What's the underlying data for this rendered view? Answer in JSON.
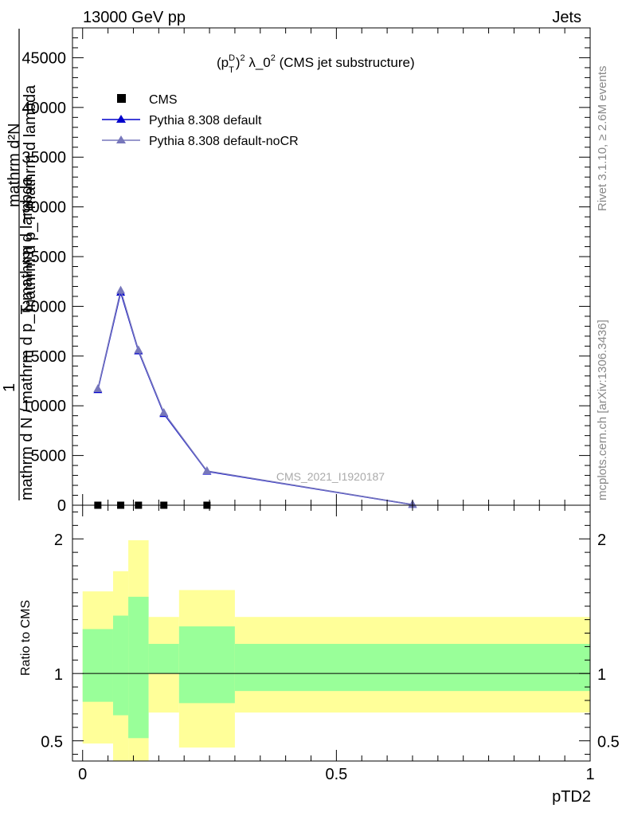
{
  "header": {
    "left": "13000 GeV pp",
    "right": "Jets"
  },
  "side_labels": {
    "rivet": "Rivet 3.1.10, ≥ 2.6M events",
    "mcplots": "mcplots.cern.ch [arXiv:1306.3436]"
  },
  "chart_data": [
    {
      "type": "line",
      "title": "(p_T^D)^2 λ_0^2 (CMS jet substructure)",
      "title_parts": {
        "a": "(p",
        "sup1": "D",
        "sub1": "T",
        "b": ")",
        "sup2": "2",
        "c": " λ_0",
        "sup3": "2",
        "d": " (CMS jet substructure)"
      },
      "ylabel_lines": [
        "1",
        "mathrm d²N",
        "mathrm d N / mathrm d p_T mathrm d lambda",
        "mathrm d p_T mathrm d lambda"
      ],
      "watermark": "CMS_2021_I1920187",
      "xlim": [
        -0.02,
        1.0
      ],
      "ylim": [
        0,
        48000
      ],
      "yticks": [
        0,
        5000,
        10000,
        15000,
        20000,
        25000,
        30000,
        35000,
        40000,
        45000
      ],
      "ytick_labels": [
        "0",
        "5000",
        "10000",
        "15000",
        "20000",
        "25000",
        "30000",
        "35000",
        "40000",
        "45000"
      ],
      "legend": {
        "placement": "top-left",
        "entries": [
          "CMS",
          "Pythia 8.308 default",
          "Pythia 8.308 default-noCR"
        ]
      },
      "series": [
        {
          "name": "CMS",
          "marker": "square",
          "color": "#000000",
          "x": [
            0.03,
            0.075,
            0.11,
            0.16,
            0.245
          ],
          "y": [
            0,
            0,
            0,
            0,
            0
          ]
        },
        {
          "name": "Pythia 8.308 default",
          "marker": "triangle",
          "color": "#0000cc",
          "x": [
            0.03,
            0.075,
            0.11,
            0.16,
            0.245,
            0.65
          ],
          "y": [
            11600,
            21400,
            15500,
            9200,
            3400,
            60
          ]
        },
        {
          "name": "Pythia 8.308 default-noCR",
          "marker": "triangle",
          "color": "#7777bb",
          "x": [
            0.03,
            0.075,
            0.11,
            0.16,
            0.245,
            0.65
          ],
          "y": [
            11700,
            21600,
            15600,
            9300,
            3450,
            70
          ]
        }
      ]
    },
    {
      "type": "area",
      "ylabel": "Ratio to CMS",
      "xlabel": "pTD2",
      "xlim": [
        -0.02,
        1.0
      ],
      "ylim": [
        0.35,
        2.25
      ],
      "yticks": [
        0.5,
        1,
        2
      ],
      "ytick_labels": [
        "0.5",
        "1",
        "2"
      ],
      "xticks": [
        0,
        0.5,
        1
      ],
      "xtick_labels": [
        "0",
        "0.5",
        "1"
      ],
      "reference_line": 1,
      "bins": [
        {
          "x0": 0.0,
          "x1": 0.06,
          "inner": [
            0.79,
            1.33
          ],
          "outer": [
            0.48,
            1.61
          ]
        },
        {
          "x0": 0.06,
          "x1": 0.09,
          "inner": [
            0.69,
            1.43
          ],
          "outer": [
            0.35,
            1.76
          ]
        },
        {
          "x0": 0.09,
          "x1": 0.13,
          "inner": [
            0.52,
            1.57
          ],
          "outer": [
            0.35,
            1.99
          ]
        },
        {
          "x0": 0.13,
          "x1": 0.19,
          "inner": [
            1.0,
            1.22
          ],
          "outer": [
            0.71,
            1.42
          ]
        },
        {
          "x0": 0.19,
          "x1": 0.3,
          "inner": [
            0.78,
            1.35
          ],
          "outer": [
            0.45,
            1.62
          ]
        },
        {
          "x0": 0.3,
          "x1": 1.0,
          "inner": [
            0.87,
            1.22
          ],
          "outer": [
            0.71,
            1.42
          ]
        }
      ],
      "inner_color": "#99ff99",
      "outer_color": "#ffff99"
    }
  ]
}
